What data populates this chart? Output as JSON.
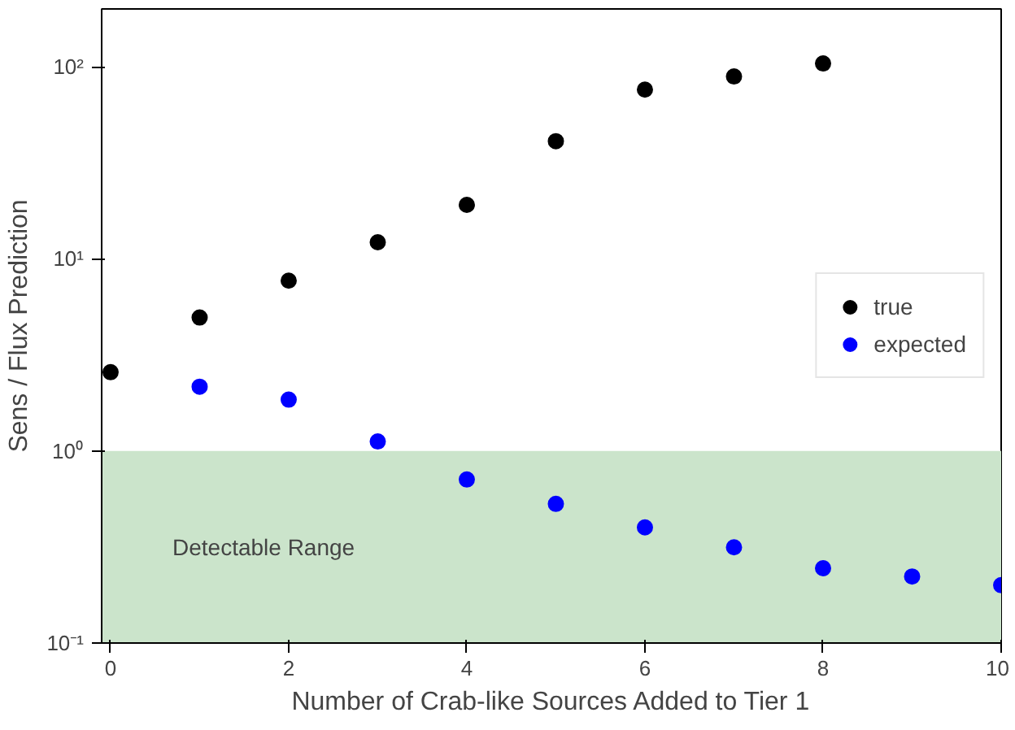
{
  "chart_data": {
    "type": "scatter",
    "xlabel": "Number of Crab-like Sources Added to Tier 1",
    "ylabel": "Sens / Flux Prediction",
    "series": [
      {
        "name": "true",
        "color": "#000000",
        "x": [
          0,
          1,
          2,
          3,
          4,
          5,
          6,
          7,
          8
        ],
        "values": [
          2.57,
          4.95,
          7.7,
          12.2,
          19.1,
          41,
          76,
          89,
          104
        ]
      },
      {
        "name": "expected",
        "color": "#0000ff",
        "x": [
          1,
          2,
          3,
          4,
          5,
          6,
          7,
          8,
          9,
          10
        ],
        "values": [
          2.16,
          1.85,
          1.12,
          0.71,
          0.53,
          0.4,
          0.315,
          0.245,
          0.222,
          0.2
        ]
      }
    ],
    "bands": [
      {
        "axis": "y",
        "from": 0.1,
        "to": 1,
        "label": "Detectable Range",
        "color": "#cbe4cb"
      }
    ],
    "log": "y",
    "xlim": [
      -0.1,
      10
    ],
    "ylim": [
      0.1,
      200
    ],
    "xticks": [
      0,
      2,
      4,
      6,
      8,
      10
    ],
    "yticks": [
      {
        "value": 0.1,
        "label": "10⁻¹"
      },
      {
        "value": 1,
        "label": "10⁰"
      },
      {
        "value": 10,
        "label": "10¹"
      },
      {
        "value": 100,
        "label": "10²"
      }
    ],
    "grid": false,
    "legend": "right",
    "marker": "circle"
  }
}
